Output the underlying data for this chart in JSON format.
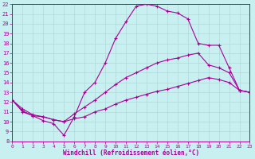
{
  "xlabel": "Windchill (Refroidissement éolien,°C)",
  "bg_color": "#c8f0f0",
  "line_color": "#aa0099",
  "grid_color": "#b0d8d8",
  "xlim": [
    0,
    23
  ],
  "ylim": [
    8,
    22
  ],
  "xticks": [
    0,
    1,
    2,
    3,
    4,
    5,
    6,
    7,
    8,
    9,
    10,
    11,
    12,
    13,
    14,
    15,
    16,
    17,
    18,
    19,
    20,
    21,
    22,
    23
  ],
  "yticks": [
    8,
    9,
    10,
    11,
    12,
    13,
    14,
    15,
    16,
    17,
    18,
    19,
    20,
    21,
    22
  ],
  "line1_x": [
    0,
    1,
    2,
    3,
    4,
    5,
    6,
    7,
    8,
    9,
    10,
    11,
    12,
    13,
    14,
    15,
    16,
    17,
    18,
    19,
    20,
    21,
    22,
    23
  ],
  "line1_y": [
    12.2,
    11.1,
    10.6,
    10.1,
    9.8,
    8.6,
    10.5,
    13.0,
    14.0,
    16.0,
    18.5,
    20.2,
    21.8,
    22.0,
    21.8,
    21.3,
    21.1,
    20.5,
    18.0,
    17.8,
    17.8,
    15.5,
    13.2,
    13.0
  ],
  "line2_x": [
    0,
    1,
    2,
    3,
    4,
    5,
    6,
    7,
    8,
    9,
    10,
    11,
    12,
    13,
    14,
    15,
    16,
    17,
    18,
    19,
    20,
    21,
    22,
    23
  ],
  "line2_y": [
    12.2,
    11.3,
    10.7,
    10.5,
    10.2,
    10.0,
    10.8,
    11.5,
    12.2,
    13.0,
    13.8,
    14.5,
    15.0,
    15.5,
    16.0,
    16.3,
    16.5,
    16.8,
    17.0,
    15.8,
    15.5,
    15.0,
    13.2,
    13.0
  ],
  "line3_x": [
    0,
    1,
    2,
    3,
    4,
    5,
    6,
    7,
    8,
    9,
    10,
    11,
    12,
    13,
    14,
    15,
    16,
    17,
    18,
    19,
    20,
    21,
    22,
    23
  ],
  "line3_y": [
    12.2,
    11.0,
    10.6,
    10.5,
    10.2,
    10.0,
    10.3,
    10.5,
    11.0,
    11.3,
    11.8,
    12.2,
    12.5,
    12.8,
    13.1,
    13.3,
    13.6,
    13.9,
    14.2,
    14.5,
    14.3,
    14.0,
    13.2,
    13.0
  ]
}
